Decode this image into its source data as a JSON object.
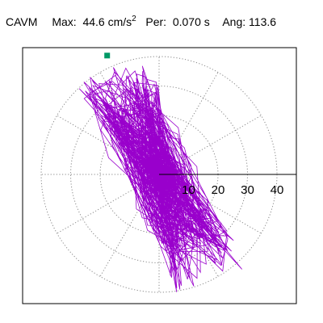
{
  "header": {
    "title": "CAVM",
    "max_label": "Max:",
    "max_value": "44.6",
    "max_unit": "cm/s",
    "max_unit_exp": "2",
    "per_label": "Per:",
    "per_value": "0.070 s",
    "ang_label": "Ang:",
    "ang_value": "113.6"
  },
  "colors": {
    "trace": "#9900cc",
    "marker": "#009966",
    "grid": "#888888",
    "frame": "#000000"
  },
  "chart_data": {
    "type": "polar-hodogram",
    "radial_ticks": [
      10,
      20,
      30,
      40
    ],
    "radial_tick_labels": [
      "10",
      "20",
      "30",
      "40"
    ],
    "r_max": 40,
    "grid": true,
    "angular_grid_step_deg": 30,
    "peak": {
      "magnitude": 44.6,
      "angle_deg": 113.6
    },
    "ellipse": {
      "major_axis_deg": 115,
      "semi_major": 40,
      "semi_minor": 12
    }
  }
}
